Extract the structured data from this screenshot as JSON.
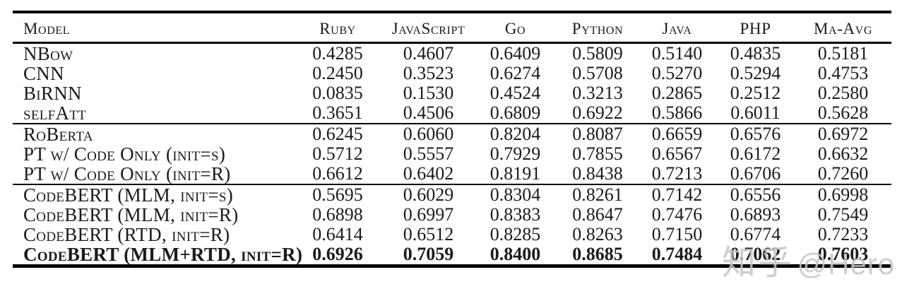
{
  "table": {
    "columns": [
      "Model",
      "Ruby",
      "JavaScript",
      "Go",
      "Python",
      "Java",
      "PHP",
      "Ma-Avg"
    ],
    "groups": [
      {
        "rows": [
          {
            "model": "NBow",
            "values": [
              "0.4285",
              "0.4607",
              "0.6409",
              "0.5809",
              "0.5140",
              "0.4835",
              "0.5181"
            ]
          },
          {
            "model": "CNN",
            "values": [
              "0.2450",
              "0.3523",
              "0.6274",
              "0.5708",
              "0.5270",
              "0.5294",
              "0.4753"
            ]
          },
          {
            "model": "BiRNN",
            "values": [
              "0.0835",
              "0.1530",
              "0.4524",
              "0.3213",
              "0.2865",
              "0.2512",
              "0.2580"
            ]
          },
          {
            "model": "selfAtt",
            "values": [
              "0.3651",
              "0.4506",
              "0.6809",
              "0.6922",
              "0.5866",
              "0.6011",
              "0.5628"
            ]
          }
        ]
      },
      {
        "rows": [
          {
            "model": "RoBerta",
            "values": [
              "0.6245",
              "0.6060",
              "0.8204",
              "0.8087",
              "0.6659",
              "0.6576",
              "0.6972"
            ]
          },
          {
            "model": "PT w/ Code Only (init=s)",
            "values": [
              "0.5712",
              "0.5557",
              "0.7929",
              "0.7855",
              "0.6567",
              "0.6172",
              "0.6632"
            ]
          },
          {
            "model": "PT w/ Code Only (init=R)",
            "values": [
              "0.6612",
              "0.6402",
              "0.8191",
              "0.8438",
              "0.7213",
              "0.6706",
              "0.7260"
            ]
          }
        ]
      },
      {
        "rows": [
          {
            "model": "CodeBERT (MLM, init=s)",
            "values": [
              "0.5695",
              "0.6029",
              "0.8304",
              "0.8261",
              "0.7142",
              "0.6556",
              "0.6998"
            ]
          },
          {
            "model": "CodeBERT (MLM, init=R)",
            "values": [
              "0.6898",
              "0.6997",
              "0.8383",
              "0.8647",
              "0.7476",
              "0.6893",
              "0.7549"
            ]
          },
          {
            "model": "CodeBERT (RTD, init=R)",
            "values": [
              "0.6414",
              "0.6512",
              "0.8285",
              "0.8263",
              "0.7150",
              "0.6774",
              "0.7233"
            ]
          },
          {
            "model": "CodeBERT (MLM+RTD, init=R)",
            "values": [
              "0.6926",
              "0.7059",
              "0.8400",
              "0.8685",
              "0.7484",
              "0.7062",
              "0.7603"
            ],
            "bold": true
          }
        ]
      }
    ]
  },
  "watermark": {
    "brand": "知乎",
    "user": "@Hero"
  }
}
